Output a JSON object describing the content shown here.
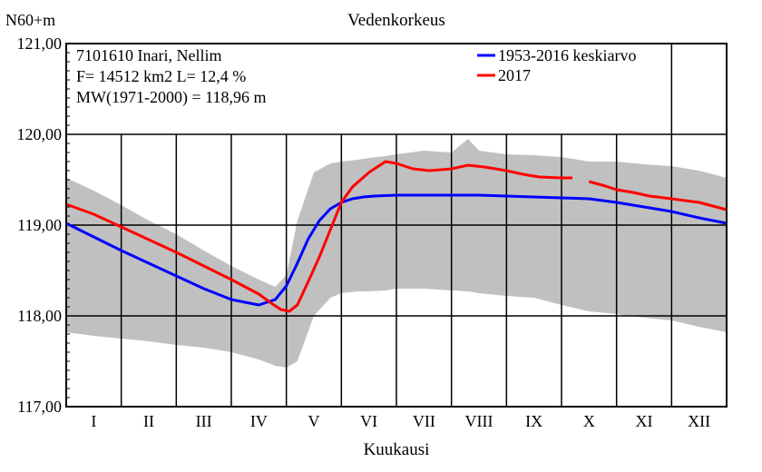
{
  "chart_data": {
    "type": "line",
    "title": "Vedenkorkeus",
    "ylabel": "N60+m",
    "xlabel": "Kuukausi",
    "ylim": [
      117,
      121
    ],
    "yticks": [
      "117,00",
      "118,00",
      "119,00",
      "120,00",
      "121,00"
    ],
    "categories": [
      "I",
      "II",
      "III",
      "IV",
      "V",
      "VI",
      "VII",
      "VIII",
      "IX",
      "X",
      "XI",
      "XII"
    ],
    "info": {
      "line1": "7101610 Inari, Nellim",
      "line2": "F=  14512 km2 L=  12,4 %",
      "line3": "MW(1971-2000) = 118,96 m"
    },
    "legend_position": "top-right",
    "grid": true,
    "band": {
      "name": "min-max range",
      "color": "#c0c0c0",
      "x": [
        0,
        0.5,
        1,
        1.5,
        2,
        2.5,
        3,
        3.5,
        3.8,
        4.0,
        4.2,
        4.5,
        4.8,
        5.0,
        5.3,
        5.5,
        5.8,
        6,
        6.5,
        7,
        7.3,
        7.5,
        8,
        8.5,
        9,
        9.5,
        10,
        10.5,
        11,
        11.5,
        12
      ],
      "upper": [
        119.52,
        119.38,
        119.22,
        119.05,
        118.9,
        118.72,
        118.55,
        118.4,
        118.32,
        118.45,
        119.05,
        119.58,
        119.68,
        119.7,
        119.72,
        119.74,
        119.76,
        119.78,
        119.82,
        119.8,
        119.95,
        119.82,
        119.78,
        119.77,
        119.75,
        119.7,
        119.7,
        119.67,
        119.65,
        119.6,
        119.52
      ],
      "lower": [
        117.82,
        117.78,
        117.75,
        117.72,
        117.68,
        117.65,
        117.6,
        117.52,
        117.45,
        117.43,
        117.5,
        118.0,
        118.2,
        118.25,
        118.27,
        118.27,
        118.28,
        118.3,
        118.3,
        118.28,
        118.27,
        118.25,
        118.22,
        118.2,
        118.12,
        118.05,
        118.02,
        117.98,
        117.95,
        117.88,
        117.82
      ]
    },
    "series": [
      {
        "name": "1953-2016 keskiarvo",
        "color": "#0000ff",
        "x": [
          0,
          0.5,
          1,
          1.5,
          2,
          2.5,
          3,
          3.5,
          3.8,
          4.0,
          4.2,
          4.4,
          4.6,
          4.8,
          5.0,
          5.2,
          5.4,
          5.6,
          6,
          6.5,
          7,
          7.5,
          8,
          8.5,
          9,
          9.5,
          10,
          10.5,
          11,
          11.5,
          12
        ],
        "y": [
          119.02,
          118.87,
          118.72,
          118.58,
          118.44,
          118.3,
          118.18,
          118.12,
          118.18,
          118.33,
          118.58,
          118.85,
          119.05,
          119.18,
          119.25,
          119.29,
          119.31,
          119.32,
          119.33,
          119.33,
          119.33,
          119.33,
          119.32,
          119.31,
          119.3,
          119.29,
          119.25,
          119.2,
          119.15,
          119.08,
          119.02
        ]
      },
      {
        "name": "2017",
        "color": "#ff0000",
        "x": [
          0,
          0.5,
          1,
          1.5,
          2,
          2.5,
          3,
          3.5,
          3.75,
          3.9,
          4.05,
          4.2,
          4.4,
          4.6,
          4.8,
          5.0,
          5.2,
          5.5,
          5.8,
          6,
          6.3,
          6.6,
          7,
          7.3,
          7.6,
          8,
          8.3,
          8.6,
          9,
          9.2,
          null,
          9.5,
          9.8,
          10,
          10.3,
          10.6,
          11,
          11.5,
          12
        ],
        "y": [
          119.23,
          119.12,
          118.98,
          118.84,
          118.7,
          118.55,
          118.4,
          118.24,
          118.13,
          118.07,
          118.05,
          118.12,
          118.38,
          118.65,
          118.95,
          119.25,
          119.42,
          119.58,
          119.7,
          119.68,
          119.62,
          119.6,
          119.62,
          119.66,
          119.64,
          119.6,
          119.56,
          119.53,
          119.52,
          119.52,
          null,
          119.48,
          119.43,
          119.39,
          119.36,
          119.32,
          119.29,
          119.25,
          119.17
        ]
      }
    ]
  }
}
